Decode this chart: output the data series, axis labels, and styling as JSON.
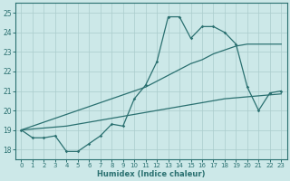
{
  "xlabel": "Humidex (Indice chaleur)",
  "xlim": [
    -0.5,
    23.5
  ],
  "ylim": [
    17.5,
    25.5
  ],
  "yticks": [
    18,
    19,
    20,
    21,
    22,
    23,
    24,
    25
  ],
  "xticks": [
    0,
    1,
    2,
    3,
    4,
    5,
    6,
    7,
    8,
    9,
    10,
    11,
    12,
    13,
    14,
    15,
    16,
    17,
    18,
    19,
    20,
    21,
    22,
    23
  ],
  "background_color": "#cce8e8",
  "grid_color": "#aacccc",
  "line_color": "#2a7070",
  "line_jagged": [
    19.0,
    18.6,
    18.6,
    18.7,
    17.9,
    17.9,
    18.3,
    18.7,
    19.3,
    19.2,
    20.6,
    21.3,
    22.5,
    24.8,
    24.8,
    23.7,
    24.3,
    24.3,
    24.0,
    23.4,
    21.2,
    20.0,
    20.9,
    21.0
  ],
  "line_steep": [
    19.0,
    19.2,
    19.4,
    19.6,
    19.8,
    20.0,
    20.2,
    20.4,
    20.6,
    20.8,
    21.0,
    21.2,
    21.5,
    21.8,
    22.1,
    22.4,
    22.6,
    22.9,
    23.1,
    23.3,
    23.4,
    23.4,
    23.4,
    23.4
  ],
  "line_shallow": [
    19.0,
    19.05,
    19.1,
    19.15,
    19.2,
    19.3,
    19.4,
    19.5,
    19.6,
    19.7,
    19.8,
    19.9,
    20.0,
    20.1,
    20.2,
    20.3,
    20.4,
    20.5,
    20.6,
    20.65,
    20.7,
    20.75,
    20.8,
    20.85
  ],
  "hours": [
    0,
    1,
    2,
    3,
    4,
    5,
    6,
    7,
    8,
    9,
    10,
    11,
    12,
    13,
    14,
    15,
    16,
    17,
    18,
    19,
    20,
    21,
    22,
    23
  ]
}
